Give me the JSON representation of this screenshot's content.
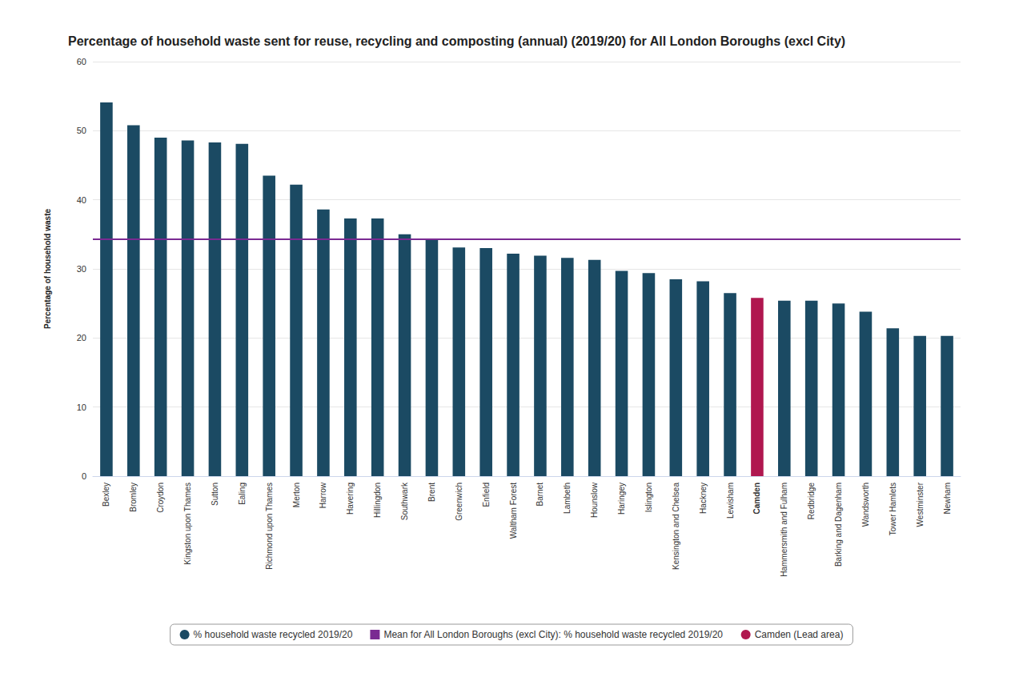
{
  "chart_data": {
    "type": "bar",
    "title": "Percentage of household waste sent for reuse, recycling and composting (annual) (2019/20) for All London Boroughs (excl City)",
    "ylabel": "Percentage of household waste",
    "categories": [
      "Bexley",
      "Bromley",
      "Croydon",
      "Kingston upon Thames",
      "Sutton",
      "Ealing",
      "Richmond upon Thames",
      "Merton",
      "Harrow",
      "Havering",
      "Hillingdon",
      "Southwark",
      "Brent",
      "Greenwich",
      "Enfield",
      "Waltham Forest",
      "Barnet",
      "Lambeth",
      "Hounslow",
      "Haringey",
      "Islington",
      "Kensington and Chelsea",
      "Hackney",
      "Lewisham",
      "Camden",
      "Hammersmith and Fulham",
      "Redbridge",
      "Barking and Dagenham",
      "Wandsworth",
      "Tower Hamlets",
      "Westminster",
      "Newham"
    ],
    "series": [
      {
        "name": "% household waste recycled 2019/20",
        "type": "bar",
        "color": "#1b4a63",
        "values": [
          54.1,
          50.8,
          49.0,
          48.6,
          48.3,
          48.1,
          43.5,
          42.2,
          38.6,
          37.3,
          37.3,
          35.0,
          34.3,
          33.1,
          33.0,
          32.2,
          31.9,
          31.6,
          31.3,
          29.7,
          29.4,
          28.5,
          28.2,
          26.5,
          null,
          25.4,
          25.4,
          25.0,
          23.8,
          21.4,
          20.3,
          20.3
        ]
      },
      {
        "name": "Mean for All London Boroughs (excl City): % household waste recycled 2019/20",
        "type": "line",
        "color": "#7a2a92",
        "values": [
          34.3,
          34.3,
          34.3,
          34.3,
          34.3,
          34.3,
          34.3,
          34.3,
          34.3,
          34.3,
          34.3,
          34.3,
          34.3,
          34.3,
          34.3,
          34.3,
          34.3,
          34.3,
          34.3,
          34.3,
          34.3,
          34.3,
          34.3,
          34.3,
          34.3,
          34.3,
          34.3,
          34.3,
          34.3,
          34.3,
          34.3,
          34.3
        ]
      },
      {
        "name": "Camden (Lead area)",
        "type": "bar",
        "color": "#b0174f",
        "values": [
          null,
          null,
          null,
          null,
          null,
          null,
          null,
          null,
          null,
          null,
          null,
          null,
          null,
          null,
          null,
          null,
          null,
          null,
          null,
          null,
          null,
          null,
          null,
          null,
          25.8,
          null,
          null,
          null,
          null,
          null,
          null,
          null
        ]
      }
    ],
    "ylim": [
      0,
      60
    ],
    "yticks": [
      0,
      10,
      20,
      30,
      40,
      50,
      60
    ],
    "grid": true,
    "legend": "bottom"
  }
}
